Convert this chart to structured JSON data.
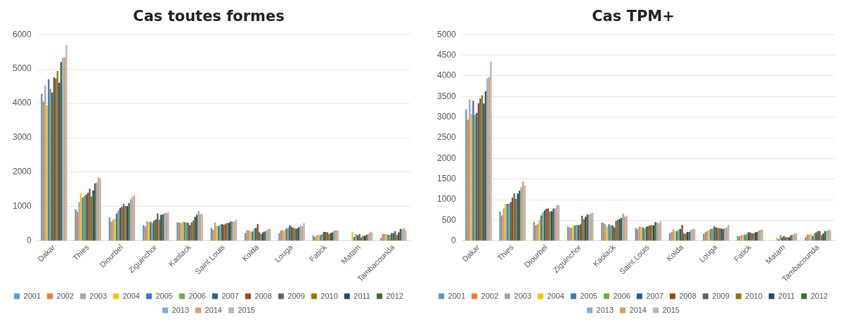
{
  "chart_data": [
    {
      "type": "bar",
      "title": "Cas toutes formes",
      "categories": [
        "Dakar",
        "Thies",
        "Diourbel",
        "Ziguinchor",
        "Kaolack",
        "Saint Louis",
        "Kolda",
        "Louga",
        "Fatick",
        "Matam",
        "Tambacounda"
      ],
      "ylim": [
        0,
        6000
      ],
      "yticks": [
        0,
        1000,
        2000,
        3000,
        4000,
        5000,
        6000
      ],
      "grid": "y",
      "legend": "bottom",
      "series": [
        {
          "name": "2001",
          "color": "#5b9bd5",
          "values": [
            4280,
            920,
            680,
            460,
            540,
            380,
            230,
            230,
            160,
            null,
            90
          ]
        },
        {
          "name": "2002",
          "color": "#ed7d31",
          "values": [
            4060,
            850,
            560,
            420,
            530,
            330,
            310,
            310,
            120,
            null,
            200
          ]
        },
        {
          "name": "2003",
          "color": "#a5a5a5",
          "values": [
            4520,
            1130,
            620,
            570,
            520,
            540,
            310,
            310,
            170,
            null,
            200
          ]
        },
        {
          "name": "2004",
          "color": "#ffc000",
          "values": [
            3940,
            1380,
            650,
            550,
            560,
            440,
            280,
            310,
            170,
            250,
            200
          ]
        },
        {
          "name": "2005",
          "color": "#4472c4",
          "values": [
            4700,
            1260,
            800,
            560,
            550,
            430,
            270,
            360,
            170,
            120,
            180
          ]
        },
        {
          "name": "2006",
          "color": "#70ad47",
          "values": [
            4420,
            1310,
            880,
            520,
            530,
            470,
            360,
            380,
            200,
            200,
            180
          ]
        },
        {
          "name": "2007",
          "color": "#255e91",
          "values": [
            4320,
            1350,
            960,
            590,
            530,
            490,
            380,
            450,
            260,
            160,
            230
          ]
        },
        {
          "name": "2008",
          "color": "#9e480e",
          "values": [
            4760,
            1400,
            990,
            630,
            460,
            470,
            490,
            410,
            260,
            200,
            230
          ]
        },
        {
          "name": "2009",
          "color": "#636363",
          "values": [
            4720,
            1520,
            1080,
            800,
            540,
            500,
            250,
            380,
            250,
            100,
            280
          ]
        },
        {
          "name": "2010",
          "color": "#997300",
          "values": [
            4940,
            1290,
            1020,
            620,
            600,
            520,
            200,
            360,
            200,
            150,
            170
          ]
        },
        {
          "name": "2011",
          "color": "#264478",
          "values": [
            4600,
            1470,
            1010,
            760,
            700,
            520,
            250,
            360,
            230,
            150,
            250
          ]
        },
        {
          "name": "2012",
          "color": "#43682b",
          "values": [
            5200,
            1670,
            1100,
            770,
            760,
            570,
            270,
            400,
            250,
            180,
            350
          ]
        },
        {
          "name": "2013",
          "color": "#7cafdd",
          "values": [
            5320,
            1700,
            1210,
            820,
            880,
            570,
            310,
            440,
            300,
            200,
            350
          ]
        },
        {
          "name": "2014",
          "color": "#f1975a",
          "values": [
            5340,
            1840,
            1280,
            810,
            780,
            560,
            350,
            430,
            310,
            250,
            380
          ]
        },
        {
          "name": "2015",
          "color": "#b7b7b7",
          "values": [
            5700,
            1820,
            1330,
            830,
            790,
            620,
            350,
            520,
            310,
            250,
            310
          ]
        }
      ]
    },
    {
      "type": "bar",
      "title": "Cas TPM+",
      "categories": [
        "Dakar",
        "Thies",
        "Diourbel",
        "Ziguinchor",
        "Kaolack",
        "Saint Louis",
        "Kolda",
        "Louga",
        "Fatick",
        "Matam",
        "Tambacounda"
      ],
      "ylim": [
        0,
        5000
      ],
      "yticks": [
        0,
        500,
        1000,
        1500,
        2000,
        2500,
        3000,
        3500,
        4000,
        4500,
        5000
      ],
      "grid": "y",
      "legend": "bottom",
      "series": [
        {
          "name": "2001",
          "color": "#5b9bd5",
          "values": [
            3190,
            710,
            460,
            350,
            450,
            310,
            190,
            170,
            120,
            null,
            90
          ]
        },
        {
          "name": "2002",
          "color": "#ed7d31",
          "values": [
            2940,
            620,
            380,
            320,
            430,
            280,
            220,
            220,
            110,
            null,
            150
          ]
        },
        {
          "name": "2003",
          "color": "#a5a5a5",
          "values": [
            3430,
            790,
            410,
            320,
            400,
            350,
            280,
            240,
            140,
            null,
            150
          ]
        },
        {
          "name": "2004",
          "color": "#ffc000",
          "values": [
            3080,
            890,
            500,
            370,
            340,
            340,
            240,
            270,
            140,
            80,
            170
          ]
        },
        {
          "name": "2005",
          "color": "#4472c4",
          "values": [
            3400,
            900,
            620,
            370,
            400,
            330,
            240,
            290,
            150,
            40,
            120
          ]
        },
        {
          "name": "2006",
          "color": "#70ad47",
          "values": [
            3060,
            900,
            690,
            390,
            370,
            300,
            280,
            300,
            170,
            140,
            180
          ]
        },
        {
          "name": "2007",
          "color": "#255e91",
          "values": [
            3100,
            940,
            740,
            380,
            380,
            340,
            290,
            350,
            210,
            90,
            210
          ]
        },
        {
          "name": "2008",
          "color": "#9e480e",
          "values": [
            3340,
            1050,
            780,
            400,
            330,
            360,
            390,
            330,
            210,
            120,
            240
          ]
        },
        {
          "name": "2009",
          "color": "#636363",
          "values": [
            3450,
            1150,
            790,
            610,
            480,
            380,
            180,
            310,
            190,
            90,
            240
          ]
        },
        {
          "name": "2010",
          "color": "#997300",
          "values": [
            3530,
            1020,
            710,
            530,
            510,
            380,
            180,
            310,
            180,
            90,
            140
          ]
        },
        {
          "name": "2011",
          "color": "#264478",
          "values": [
            3330,
            1150,
            720,
            590,
            530,
            380,
            220,
            300,
            210,
            90,
            180
          ]
        },
        {
          "name": "2012",
          "color": "#43682b",
          "values": [
            3630,
            1220,
            790,
            640,
            560,
            460,
            220,
            290,
            220,
            140,
            240
          ]
        },
        {
          "name": "2013",
          "color": "#7cafdd",
          "values": [
            3940,
            1300,
            790,
            640,
            660,
            450,
            270,
            310,
            250,
            150,
            240
          ]
        },
        {
          "name": "2014",
          "color": "#f1975a",
          "values": [
            3970,
            1440,
            870,
            660,
            590,
            430,
            290,
            320,
            270,
            180,
            270
          ]
        },
        {
          "name": "2015",
          "color": "#b7b7b7",
          "values": [
            4350,
            1340,
            870,
            680,
            620,
            480,
            290,
            390,
            270,
            180,
            250
          ]
        }
      ]
    }
  ]
}
